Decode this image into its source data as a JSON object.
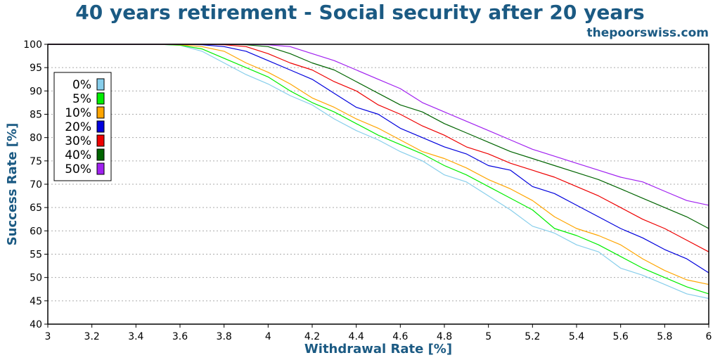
{
  "chart_data": {
    "type": "line",
    "title": "40 years retirement - Social security after 20 years",
    "subtitle": "thepoorswiss.com",
    "xlabel": "Withdrawal Rate [%]",
    "ylabel": "Success Rate [%]",
    "xlim": [
      3,
      6
    ],
    "ylim": [
      40,
      100
    ],
    "xticks": [
      "3",
      "3.2",
      "3.4",
      "3.6",
      "3.8",
      "4",
      "4.2",
      "4.4",
      "4.6",
      "4.8",
      "5",
      "5.2",
      "5.4",
      "5.6",
      "5.8",
      "6"
    ],
    "yticks": [
      "40",
      "45",
      "50",
      "55",
      "60",
      "65",
      "70",
      "75",
      "80",
      "85",
      "90",
      "95",
      "100"
    ],
    "grid": "horizontal-dotted",
    "legend_position": "upper-left",
    "x": [
      3.0,
      3.1,
      3.2,
      3.3,
      3.4,
      3.5,
      3.6,
      3.7,
      3.8,
      3.9,
      4.0,
      4.1,
      4.2,
      4.3,
      4.4,
      4.5,
      4.6,
      4.7,
      4.8,
      4.9,
      5.0,
      5.1,
      5.2,
      5.3,
      5.4,
      5.5,
      5.6,
      5.7,
      5.8,
      5.9,
      6.0
    ],
    "series": [
      {
        "name": "0%",
        "color": "#87ceeb",
        "values": [
          100,
          100,
          100,
          100,
          100,
          100,
          99.8,
          98.5,
          96.0,
          93.5,
          91.5,
          89.0,
          87.0,
          84.0,
          81.5,
          79.5,
          77.0,
          75.0,
          72.0,
          70.5,
          67.5,
          64.5,
          61.0,
          59.5,
          57.0,
          55.5,
          52.0,
          50.5,
          48.5,
          46.5,
          45.5
        ]
      },
      {
        "name": "5%",
        "color": "#00ee00",
        "values": [
          100,
          100,
          100,
          100,
          100,
          100,
          99.8,
          99.0,
          97.0,
          95.0,
          93.0,
          90.0,
          87.5,
          85.5,
          83.0,
          80.5,
          78.5,
          76.5,
          74.0,
          72.0,
          69.5,
          67.0,
          64.5,
          60.5,
          59.0,
          57.0,
          54.5,
          52.0,
          50.0,
          48.0,
          46.5
        ]
      },
      {
        "name": "10%",
        "color": "#ffa500",
        "values": [
          100,
          100,
          100,
          100,
          100,
          100,
          99.9,
          99.5,
          98.5,
          96.0,
          94.0,
          91.5,
          88.5,
          86.5,
          84.0,
          82.0,
          79.5,
          77.0,
          75.5,
          73.5,
          71.0,
          69.0,
          66.5,
          63.0,
          60.5,
          59.0,
          57.0,
          54.0,
          51.5,
          49.5,
          48.5
        ]
      },
      {
        "name": "20%",
        "color": "#0000dd",
        "values": [
          100,
          100,
          100,
          100,
          100,
          100,
          100,
          99.9,
          99.5,
          98.5,
          96.5,
          94.5,
          92.5,
          89.5,
          86.5,
          85.0,
          82.0,
          80.0,
          78.0,
          76.5,
          74.0,
          73.0,
          69.5,
          68.0,
          65.5,
          63.0,
          60.5,
          58.5,
          56.0,
          54.0,
          51.0
        ]
      },
      {
        "name": "30%",
        "color": "#ee0000",
        "values": [
          100,
          100,
          100,
          100,
          100,
          100,
          100,
          100,
          99.9,
          99.5,
          98.0,
          96.0,
          94.5,
          92.0,
          90.0,
          87.0,
          85.0,
          82.5,
          80.5,
          78.0,
          76.5,
          74.5,
          73.0,
          71.5,
          69.5,
          67.5,
          65.0,
          62.5,
          60.5,
          58.0,
          55.5
        ]
      },
      {
        "name": "40%",
        "color": "#006400",
        "values": [
          100,
          100,
          100,
          100,
          100,
          100,
          100,
          100,
          100,
          99.9,
          99.5,
          98.0,
          96.0,
          94.5,
          92.0,
          89.5,
          87.0,
          85.5,
          83.0,
          81.0,
          79.0,
          77.0,
          75.5,
          74.0,
          72.5,
          71.0,
          69.0,
          67.0,
          65.0,
          63.0,
          60.5
        ]
      },
      {
        "name": "50%",
        "color": "#a020f0",
        "values": [
          100,
          100,
          100,
          100,
          100,
          100,
          100,
          100,
          100,
          100,
          99.9,
          99.5,
          98.0,
          96.5,
          94.5,
          92.5,
          90.5,
          87.5,
          85.5,
          83.5,
          81.5,
          79.5,
          77.5,
          76.0,
          74.5,
          73.0,
          71.5,
          70.5,
          68.5,
          66.5,
          65.5
        ]
      }
    ]
  }
}
